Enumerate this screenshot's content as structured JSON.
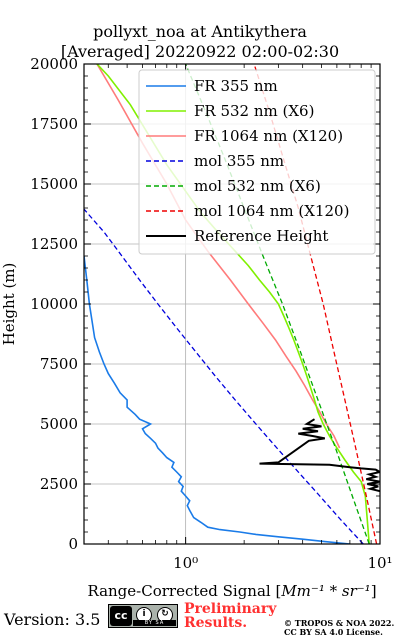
{
  "chart_data": {
    "type": "line",
    "title_line1": "pollyxt_noa at Antikythera",
    "title_line2": "[Averaged] 20220922 02:00-02:30",
    "xlabel_prefix": "Range-Corrected Signal [",
    "xlabel_math": "Mm⁻¹ * sr⁻¹",
    "xlabel_suffix": "]",
    "ylabel": "Height (m)",
    "xscale": "log",
    "xlim": [
      0.3,
      10
    ],
    "ylim": [
      0,
      20000
    ],
    "x_major_ticks": [
      1,
      10
    ],
    "x_tick_labels": [
      "10⁰",
      "10¹"
    ],
    "y_ticks": [
      0,
      2500,
      5000,
      7500,
      10000,
      12500,
      15000,
      17500,
      20000
    ],
    "y_tick_labels": [
      "0",
      "2500",
      "5000",
      "7500",
      "10000",
      "12500",
      "15000",
      "17500",
      "20000"
    ],
    "grid": true,
    "legend_position": "top-right",
    "colors": {
      "fr355": "#1a7be8",
      "fr532": "#80f000",
      "fr1064": "#ff7b7b",
      "mol355": "#0000dd",
      "mol532": "#00aa00",
      "mol1064": "#ee0000",
      "reference": "#000000"
    },
    "series": [
      {
        "name": "FR 355 nm",
        "key": "fr355",
        "style": "solid",
        "points": [
          [
            7.0,
            0
          ],
          [
            5.2,
            100
          ],
          [
            4.0,
            200
          ],
          [
            3.0,
            300
          ],
          [
            2.3,
            400
          ],
          [
            1.9,
            500
          ],
          [
            1.5,
            600
          ],
          [
            1.3,
            700
          ],
          [
            1.2,
            900
          ],
          [
            1.1,
            1100
          ],
          [
            1.05,
            1400
          ],
          [
            1.02,
            1600
          ],
          [
            1.05,
            1800
          ],
          [
            1.0,
            2000
          ],
          [
            0.95,
            2200
          ],
          [
            0.97,
            2400
          ],
          [
            0.92,
            2600
          ],
          [
            0.95,
            2800
          ],
          [
            0.9,
            3000
          ],
          [
            0.85,
            3200
          ],
          [
            0.87,
            3400
          ],
          [
            0.8,
            3600
          ],
          [
            0.76,
            3800
          ],
          [
            0.72,
            4000
          ],
          [
            0.7,
            4200
          ],
          [
            0.66,
            4400
          ],
          [
            0.62,
            4600
          ],
          [
            0.6,
            4800
          ],
          [
            0.66,
            5000
          ],
          [
            0.58,
            5200
          ],
          [
            0.55,
            5400
          ],
          [
            0.5,
            5700
          ],
          [
            0.5,
            6000
          ],
          [
            0.46,
            6300
          ],
          [
            0.43,
            6700
          ],
          [
            0.4,
            7100
          ],
          [
            0.38,
            7500
          ],
          [
            0.36,
            8000
          ],
          [
            0.34,
            8600
          ],
          [
            0.33,
            9300
          ],
          [
            0.32,
            10000
          ],
          [
            0.31,
            11000
          ],
          [
            0.3,
            12000
          ]
        ]
      },
      {
        "name": "FR 532 nm (X6)",
        "key": "fr532",
        "style": "solid",
        "points": [
          [
            8.8,
            0
          ],
          [
            8.6,
            1000
          ],
          [
            8.4,
            2000
          ],
          [
            8.0,
            2600
          ],
          [
            7.3,
            3000
          ],
          [
            6.6,
            3500
          ],
          [
            6.0,
            4000
          ],
          [
            5.5,
            4500
          ],
          [
            5.1,
            5000
          ],
          [
            4.8,
            5500
          ],
          [
            4.6,
            6000
          ],
          [
            4.4,
            6500
          ],
          [
            4.2,
            7000
          ],
          [
            4.0,
            7500
          ],
          [
            3.8,
            8000
          ],
          [
            3.6,
            8500
          ],
          [
            3.4,
            9000
          ],
          [
            3.2,
            9500
          ],
          [
            3.0,
            10000
          ],
          [
            2.7,
            10500
          ],
          [
            2.4,
            11000
          ],
          [
            2.1,
            11600
          ],
          [
            1.8,
            12200
          ],
          [
            1.5,
            12900
          ],
          [
            1.2,
            13800
          ],
          [
            1.0,
            14700
          ],
          [
            0.8,
            15800
          ],
          [
            0.65,
            17000
          ],
          [
            0.52,
            18300
          ],
          [
            0.4,
            19500
          ],
          [
            0.35,
            20000
          ]
        ]
      },
      {
        "name": "FR 1064 nm (X120)",
        "key": "fr1064",
        "style": "solid",
        "points": [
          [
            6.2,
            4000
          ],
          [
            5.8,
            4500
          ],
          [
            5.3,
            5000
          ],
          [
            4.9,
            5500
          ],
          [
            4.5,
            6000
          ],
          [
            4.1,
            6600
          ],
          [
            3.7,
            7200
          ],
          [
            3.3,
            7800
          ],
          [
            2.9,
            8500
          ],
          [
            2.5,
            9200
          ],
          [
            2.1,
            10000
          ],
          [
            1.7,
            11000
          ],
          [
            1.3,
            12200
          ],
          [
            1.0,
            13500
          ],
          [
            0.8,
            15000
          ],
          [
            0.6,
            16700
          ],
          [
            0.45,
            18500
          ],
          [
            0.35,
            20000
          ]
        ]
      },
      {
        "name": "mol 355 nm",
        "key": "mol355",
        "style": "dashed",
        "points": [
          [
            8.2,
            0
          ],
          [
            6.3,
            1000
          ],
          [
            4.9,
            2000
          ],
          [
            3.8,
            3000
          ],
          [
            2.95,
            4000
          ],
          [
            2.3,
            5000
          ],
          [
            1.8,
            6000
          ],
          [
            1.42,
            7000
          ],
          [
            1.13,
            8000
          ],
          [
            0.9,
            9000
          ],
          [
            0.72,
            10000
          ],
          [
            0.58,
            11000
          ],
          [
            0.47,
            12000
          ],
          [
            0.38,
            13000
          ],
          [
            0.3,
            13950
          ]
        ]
      },
      {
        "name": "mol 532 nm (X6)",
        "key": "mol532",
        "style": "dashed",
        "points": [
          [
            8.8,
            0
          ],
          [
            7.2,
            2000
          ],
          [
            5.9,
            4000
          ],
          [
            4.8,
            6000
          ],
          [
            3.9,
            8000
          ],
          [
            3.15,
            10000
          ],
          [
            2.5,
            12000
          ],
          [
            2.0,
            14000
          ],
          [
            1.6,
            16000
          ],
          [
            1.27,
            18000
          ],
          [
            1.0,
            20000
          ]
        ]
      },
      {
        "name": "mol 1064 nm (X120)",
        "key": "mol1064",
        "style": "dashed",
        "points": [
          [
            9.6,
            0
          ],
          [
            8.5,
            2000
          ],
          [
            7.5,
            4000
          ],
          [
            6.6,
            6000
          ],
          [
            5.8,
            8000
          ],
          [
            5.1,
            10000
          ],
          [
            4.4,
            12000
          ],
          [
            3.8,
            14000
          ],
          [
            3.2,
            16000
          ],
          [
            2.7,
            18000
          ],
          [
            2.25,
            20000
          ]
        ]
      },
      {
        "name": "Reference Height",
        "key": "reference",
        "style": "solid",
        "points": [
          [
            4.6,
            5200
          ],
          [
            4.2,
            5000
          ],
          [
            5.0,
            4900
          ],
          [
            4.0,
            4800
          ],
          [
            4.8,
            4700
          ],
          [
            3.8,
            4600
          ],
          [
            4.5,
            4500
          ],
          [
            5.2,
            4400
          ],
          [
            4.3,
            4300
          ],
          [
            3.0,
            3400
          ],
          [
            2.4,
            3350
          ],
          [
            5.5,
            3300
          ],
          [
            7.0,
            3200
          ],
          [
            8.0,
            3150
          ],
          [
            9.5,
            3100
          ],
          [
            10,
            3000
          ],
          [
            8.8,
            2900
          ],
          [
            9.5,
            2800
          ],
          [
            8.5,
            2700
          ],
          [
            10,
            2600
          ],
          [
            8.6,
            2500
          ],
          [
            9.8,
            2400
          ],
          [
            8.9,
            2300
          ],
          [
            10,
            2200
          ]
        ]
      }
    ]
  },
  "footer": {
    "version": "Version: 3.5",
    "license_badge": [
      "cc",
      "by",
      "sa"
    ],
    "preliminary_line1": "Preliminary",
    "preliminary_line2": "Results.",
    "copyright_line1": "© TROPOS & NOA 2022.",
    "copyright_line2": "CC BY SA 4.0 License."
  }
}
